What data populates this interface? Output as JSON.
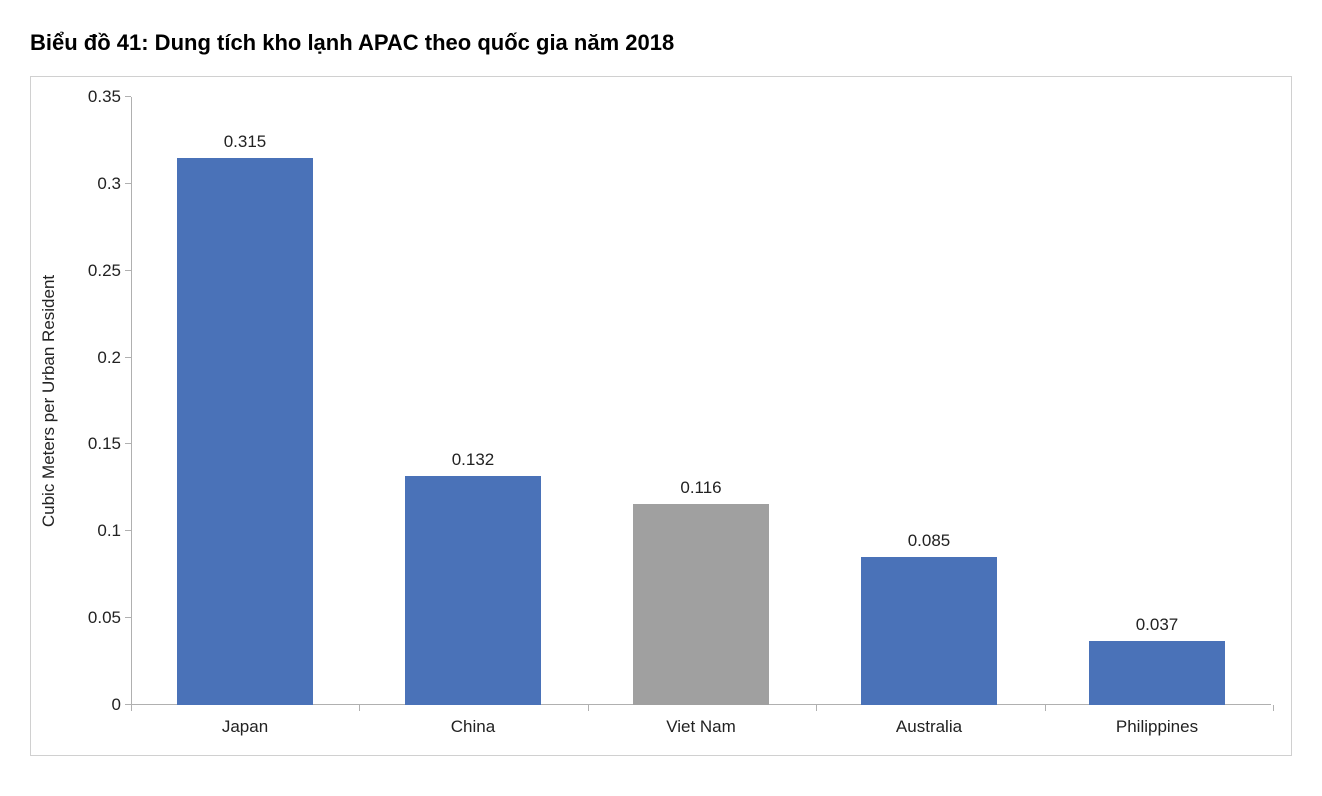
{
  "chart": {
    "type": "bar",
    "title": "Biểu đồ 41: Dung tích kho lạnh APAC theo quốc gia năm 2018",
    "title_fontsize": 22,
    "title_color": "#000000",
    "ylabel": "Cubic Meters per Urban Resident",
    "ylabel_fontsize": 17,
    "ylim": [
      0,
      0.35
    ],
    "ytick_step": 0.05,
    "yticks": [
      0,
      0.05,
      0.1,
      0.15,
      0.2,
      0.25,
      0.3,
      0.35
    ],
    "ytick_labels": [
      "0",
      "0.05",
      "0.1",
      "0.15",
      "0.2",
      "0.25",
      "0.3",
      "0.35"
    ],
    "categories": [
      "Japan",
      "China",
      "Viet Nam",
      "Australia",
      "Philippines"
    ],
    "values": [
      0.315,
      0.132,
      0.116,
      0.085,
      0.037
    ],
    "value_labels": [
      "0.315",
      "0.132",
      "0.116",
      "0.085",
      "0.037"
    ],
    "bar_colors": [
      "#4a72b8",
      "#4a72b8",
      "#a0a0a0",
      "#4a72b8",
      "#4a72b8"
    ],
    "bar_width": 0.6,
    "background_color": "#ffffff",
    "border_color": "#d0d0d0",
    "axis_line_color": "#b0b0b0",
    "tick_fontsize": 17,
    "tick_color": "#222222",
    "value_label_fontsize": 17,
    "value_label_color": "#222222",
    "x_label_fontsize": 17
  }
}
